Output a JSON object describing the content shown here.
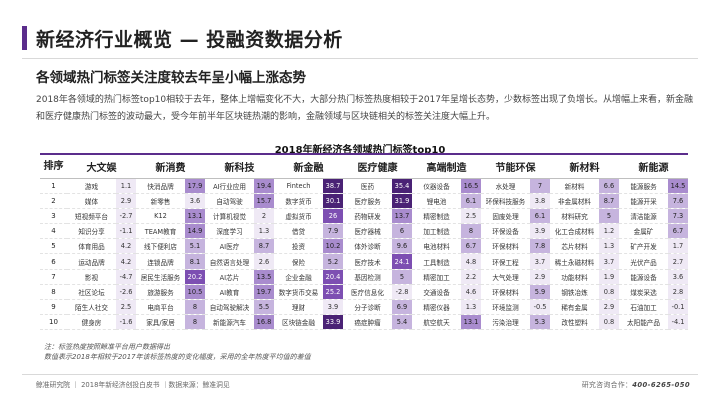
{
  "header": {
    "title": "新经济行业概览 — 投融资数据分析",
    "accent_color": "#5b2d8c"
  },
  "subtitle": "各领域热门标签关注度较去年呈小幅上涨态势",
  "intro": "2018年各领域的热门标签top10相较于去年，整体上增幅变化不大，大部分热门标签热度相较于2017年呈增长态势，少数标签出现了负增长。从增幅上来看，新金融和医疗健康热门标签的波动最大，受今年前半年区块链热潮的影响，金融领域与区块链相关的标签关注度大幅上升。",
  "table": {
    "caption": "2018年新经济各领域热门标签top10",
    "rank_header": "排序",
    "heat_colors": {
      "light": "#efe9f5",
      "mid": "#c6b4de",
      "strong": "#a98cce",
      "deep": "#7d4fb2",
      "darkest": "#4a2275"
    },
    "sectors": [
      {
        "name": "大文娱",
        "tags": [
          "游戏",
          "媒体",
          "短视频平台",
          "知识分享",
          "体育用品",
          "运动品牌",
          "影视",
          "社区论坛",
          "陌生人社交",
          "健身房"
        ],
        "values": [
          "1.1",
          "2.9",
          "-2.7",
          "-1.1",
          "4.2",
          "4.2",
          "-4.7",
          "-2.6",
          "2.5",
          "-1.6"
        ]
      },
      {
        "name": "新消费",
        "tags": [
          "快消品牌",
          "新零售",
          "K12",
          "TEAM教育",
          "线下便利店",
          "连锁品牌",
          "居民生活服务",
          "旅游服务",
          "电商平台",
          "家具/家居"
        ],
        "values": [
          "17.9",
          "3.6",
          "13.1",
          "14.9",
          "5.1",
          "8.1",
          "20.2",
          "10.5",
          "8",
          "8"
        ]
      },
      {
        "name": "新科技",
        "tags": [
          "AI行业应用",
          "自动驾驶",
          "计算机视觉",
          "深度学习",
          "AI医疗",
          "自然语言处理",
          "AI芯片",
          "AI教育",
          "自动驾驶解决",
          "新能源汽车"
        ],
        "values": [
          "19.4",
          "15.7",
          "2",
          "1.3",
          "8.7",
          "2.6",
          "13.5",
          "19.7",
          "5.5",
          "16.8"
        ]
      },
      {
        "name": "新金融",
        "tags": [
          "Fintech",
          "数字货币",
          "虚拟货币",
          "借贷",
          "投资",
          "保险",
          "企业金融",
          "数字货币交易",
          "理财",
          "区块链金融"
        ],
        "values": [
          "38.7",
          "30.1",
          "26",
          "7.9",
          "10.2",
          "5.2",
          "20.4",
          "25.2",
          "3.9",
          "33.9"
        ]
      },
      {
        "name": "医疗健康",
        "tags": [
          "医药",
          "医疗服务",
          "药物研发",
          "医疗器械",
          "体外诊断",
          "医疗技术",
          "基因检测",
          "医疗信息化",
          "分子诊断",
          "癌症肿瘤"
        ],
        "values": [
          "35.4",
          "31.9",
          "13.7",
          "6",
          "9.6",
          "24.1",
          "5",
          "-2.8",
          "6.9",
          "5.4"
        ]
      },
      {
        "name": "高端制造",
        "tags": [
          "仪器设备",
          "锂电池",
          "精密制造",
          "加工制造",
          "电池材料",
          "工具制造",
          "精密加工",
          "交通设备",
          "精密仪器",
          "航空航天"
        ],
        "values": [
          "16.5",
          "6.1",
          "2.5",
          "8",
          "6.7",
          "4.8",
          "2.2",
          "4.6",
          "1.3",
          "13.1"
        ]
      },
      {
        "name": "节能环保",
        "tags": [
          "水处理",
          "环保科技服务",
          "固废处理",
          "环保设备",
          "环保材料",
          "环保工程",
          "大气处理",
          "环保材料",
          "环境监测",
          "污染治理"
        ],
        "values": [
          "7",
          "3.8",
          "6.1",
          "3.9",
          "7.8",
          "3.7",
          "2.9",
          "5.9",
          "-0.5",
          "5.3"
        ]
      },
      {
        "name": "新材料",
        "tags": [
          "新材料",
          "非金属材料",
          "材料研究",
          "化工合成材料",
          "芯片材料",
          "稀土永磁材料",
          "功能材料",
          "钢铁冶炼",
          "稀有金属",
          "改性塑料"
        ],
        "values": [
          "6.6",
          "8.7",
          "5",
          "1.2",
          "1.3",
          "3.7",
          "1.9",
          "0.8",
          "2.9",
          "0.8"
        ]
      },
      {
        "name": "新能源",
        "tags": [
          "能源服务",
          "能源开采",
          "清洁能源",
          "金属矿",
          "矿产开发",
          "光伏产品",
          "能源设备",
          "煤炭采选",
          "石油加工",
          "太阳能产品"
        ],
        "values": [
          "14.5",
          "7.6",
          "7.3",
          "6.7",
          "1.7",
          "2.7",
          "3.6",
          "2.8",
          "-0.1",
          "-4.1"
        ]
      }
    ]
  },
  "notes": {
    "line1": "注：标签热度按照鲸准平台用户数据得出",
    "line2": "数值表示2018年相较于2017年该标签热度的变化幅度，采用的全年热度平均值的差值"
  },
  "footer": {
    "left": "鲸准研究院 ｜ 2018年新经济创投白皮书 ｜数据来源：鲸准洞见",
    "right_label": "研究咨询合作：",
    "right_phone": "400-6265-050"
  }
}
